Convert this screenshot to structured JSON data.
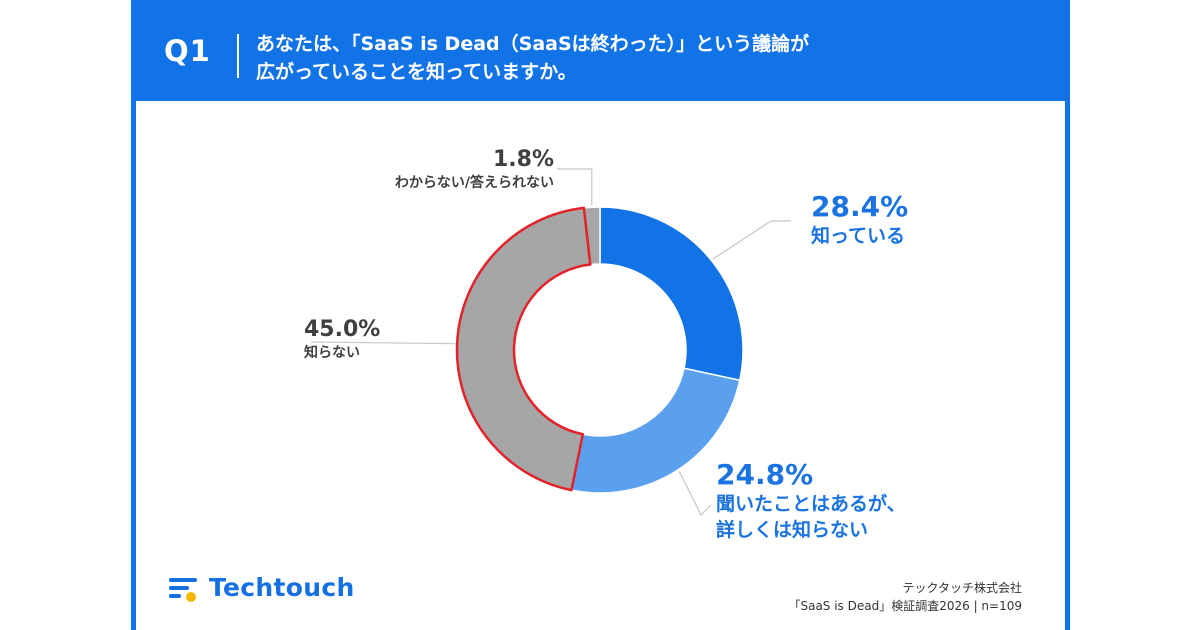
{
  "header": {
    "question_number": "Q1",
    "question_line1": "あなたは、「SaaS is Dead（SaaSは終わった）」という議論が",
    "question_line2": "広がっていることを知っていますか。"
  },
  "chart_data": {
    "type": "pie",
    "donut": true,
    "categories": [
      "知っている",
      "聞いたことはあるが、詳しくは知らない",
      "知らない",
      "わからない/答えられない"
    ],
    "values": [
      28.4,
      24.8,
      45.0,
      1.8
    ],
    "value_labels": [
      "28.4%",
      "24.8%",
      "45.0%",
      "1.8%"
    ],
    "category_label_lines": [
      [
        "知っている"
      ],
      [
        "聞いたことはあるが、",
        "詳しくは知らない"
      ],
      [
        "知らない"
      ],
      [
        "わからない/答えられない"
      ]
    ],
    "colors": [
      "#1273e6",
      "#5aa0ef",
      "#a6a6a6",
      "#a6a6a6"
    ],
    "highlighted_category": "知らない",
    "highlight_color": "#e3222a",
    "start_angle": "12 o'clock",
    "direction": "clockwise"
  },
  "footer": {
    "brand": "Techtouch",
    "company": "テックタッチ株式会社",
    "source": "「SaaS is Dead」検証調査2026 | n=109"
  },
  "colors": {
    "brand_blue": "#1273e6",
    "logo_yellow": "#f5b800"
  }
}
